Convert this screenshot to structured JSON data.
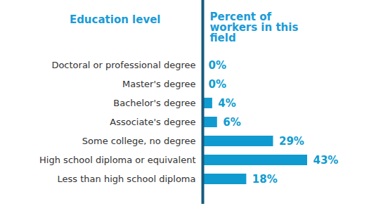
{
  "chart_data": {
    "type": "bar",
    "orientation": "horizontal",
    "y_label": "Education level",
    "x_label": "Percent of workers in this field",
    "categories": [
      "Doctoral or professional degree",
      "Master's degree",
      "Bachelor's degree",
      "Associate's degree",
      "Some college, no degree",
      "High school diploma or equivalent",
      "Less than high school diploma"
    ],
    "values": [
      0,
      0,
      4,
      6,
      29,
      43,
      18
    ],
    "value_labels": [
      "0%",
      "0%",
      "4%",
      "6%",
      "29%",
      "43%",
      "18%"
    ],
    "data_labels": true,
    "color": "#0f9bd0",
    "xlim": [
      0,
      43
    ],
    "xticks": [],
    "tick_labels": "y"
  }
}
